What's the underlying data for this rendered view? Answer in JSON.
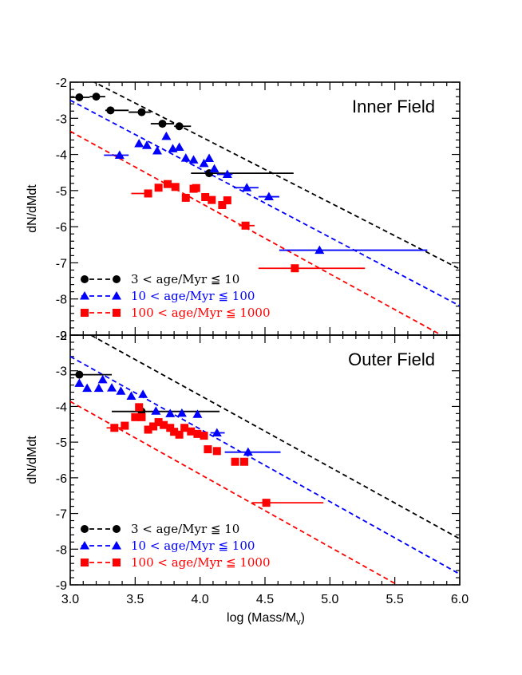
{
  "chart_data": [
    {
      "type": "scatter",
      "title": "Inner Field",
      "xlabel": "log (Mass/M",
      "ylabel": "dN/dMdt",
      "xlim": [
        3.0,
        6.0
      ],
      "ylim": [
        -9,
        -2
      ],
      "xticks": [
        "3.0",
        "3.5",
        "4.0",
        "4.5",
        "5.0",
        "5.5",
        "6.0"
      ],
      "yticks": [
        "-2",
        "-3",
        "-4",
        "-5",
        "-6",
        "-7",
        "-8",
        "-9"
      ],
      "legend_position": "bottom-left",
      "series": [
        {
          "name": "3 < age/Myr ≦ 10",
          "color": "#000000",
          "marker": "circle",
          "points": [
            {
              "x": 3.07,
              "y": -2.42,
              "xerr": [
                3.0,
                3.15
              ]
            },
            {
              "x": 3.2,
              "y": -2.4,
              "xerr": [
                3.15,
                3.27
              ]
            },
            {
              "x": 3.31,
              "y": -2.78,
              "xerr": [
                3.27,
                3.45
              ]
            },
            {
              "x": 3.55,
              "y": -2.83,
              "xerr": [
                3.45,
                3.62
              ]
            },
            {
              "x": 3.71,
              "y": -3.15,
              "xerr": [
                3.62,
                3.8
              ]
            },
            {
              "x": 3.84,
              "y": -3.22,
              "xerr": [
                3.8,
                3.93
              ]
            },
            {
              "x": 4.07,
              "y": -4.52,
              "xerr": [
                3.93,
                4.72
              ]
            }
          ],
          "fit_line": {
            "x": [
              3.0,
              6.0
            ],
            "y": [
              -1.66,
              -7.17
            ]
          }
        },
        {
          "name": "10 < age/Myr ≦ 100",
          "color": "#0000ff",
          "marker": "triangle",
          "points": [
            {
              "x": 3.38,
              "y": -4.02,
              "xerr": [
                3.26,
                3.45
              ]
            },
            {
              "x": 3.53,
              "y": -3.7
            },
            {
              "x": 3.59,
              "y": -3.75
            },
            {
              "x": 3.67,
              "y": -3.9
            },
            {
              "x": 3.74,
              "y": -3.5
            },
            {
              "x": 3.79,
              "y": -3.84
            },
            {
              "x": 3.84,
              "y": -3.8
            },
            {
              "x": 3.89,
              "y": -4.1
            },
            {
              "x": 3.95,
              "y": -4.15
            },
            {
              "x": 4.03,
              "y": -4.25
            },
            {
              "x": 4.07,
              "y": -4.11
            },
            {
              "x": 4.11,
              "y": -4.4
            },
            {
              "x": 4.21,
              "y": -4.55,
              "xerr": [
                4.13,
                4.25
              ]
            },
            {
              "x": 4.36,
              "y": -4.92,
              "xerr": [
                4.26,
                4.45
              ]
            },
            {
              "x": 4.53,
              "y": -5.17,
              "xerr": [
                4.45,
                4.61
              ]
            },
            {
              "x": 4.92,
              "y": -6.65,
              "xerr": [
                4.61,
                5.75
              ]
            }
          ],
          "fit_line": {
            "x": [
              3.0,
              6.0
            ],
            "y": [
              -2.5,
              -8.19
            ]
          }
        },
        {
          "name": "100 < age/Myr ≦ 1000",
          "color": "#ff0000",
          "marker": "square",
          "points": [
            {
              "x": 3.6,
              "y": -5.08,
              "xerr": [
                3.47,
                3.62
              ]
            },
            {
              "x": 3.68,
              "y": -4.92
            },
            {
              "x": 3.75,
              "y": -4.82
            },
            {
              "x": 3.81,
              "y": -4.9
            },
            {
              "x": 3.89,
              "y": -5.2
            },
            {
              "x": 3.95,
              "y": -4.95
            },
            {
              "x": 3.97,
              "y": -4.93
            },
            {
              "x": 4.04,
              "y": -5.18
            },
            {
              "x": 4.09,
              "y": -5.26
            },
            {
              "x": 4.17,
              "y": -5.4
            },
            {
              "x": 4.21,
              "y": -5.27
            },
            {
              "x": 4.35,
              "y": -5.97,
              "xerr": [
                4.3,
                4.42
              ]
            },
            {
              "x": 4.73,
              "y": -7.15,
              "xerr": [
                4.45,
                5.27
              ]
            }
          ],
          "fit_line": {
            "x": [
              3.0,
              6.0
            ],
            "y": [
              -3.36,
              -9.28
            ]
          }
        }
      ]
    },
    {
      "type": "scatter",
      "title": "Outer Field",
      "xlabel": "log (Mass/M",
      "ylabel": "dN/dMdt",
      "xlim": [
        3.0,
        6.0
      ],
      "ylim": [
        -9,
        -2
      ],
      "xticks": [
        "3.0",
        "3.5",
        "4.0",
        "4.5",
        "5.0",
        "5.5",
        "6.0"
      ],
      "yticks": [
        "-2",
        "-3",
        "-4",
        "-5",
        "-6",
        "-7",
        "-8",
        "-9"
      ],
      "legend_position": "bottom-left",
      "series": [
        {
          "name": "3 < age/Myr ≦ 10",
          "color": "#000000",
          "marker": "circle",
          "points": [
            {
              "x": 3.07,
              "y": -3.11,
              "xerr": [
                3.0,
                3.32
              ]
            },
            {
              "x": 3.55,
              "y": -4.14,
              "xerr": [
                3.32,
                4.15
              ]
            }
          ],
          "fit_line": {
            "x": [
              3.0,
              6.0
            ],
            "y": [
              -1.68,
              -7.71
            ]
          }
        },
        {
          "name": "10 < age/Myr ≦ 100",
          "color": "#0000ff",
          "marker": "triangle",
          "points": [
            {
              "x": 3.07,
              "y": -3.35
            },
            {
              "x": 3.13,
              "y": -3.49
            },
            {
              "x": 3.22,
              "y": -3.49
            },
            {
              "x": 3.25,
              "y": -3.25
            },
            {
              "x": 3.32,
              "y": -3.48
            },
            {
              "x": 3.39,
              "y": -3.57
            },
            {
              "x": 3.47,
              "y": -3.71
            },
            {
              "x": 3.56,
              "y": -3.66
            },
            {
              "x": 3.66,
              "y": -4.13
            },
            {
              "x": 3.77,
              "y": -4.2
            },
            {
              "x": 3.86,
              "y": -4.19
            },
            {
              "x": 3.98,
              "y": -4.22
            },
            {
              "x": 4.13,
              "y": -4.74,
              "xerr": [
                4.08,
                4.19
              ]
            },
            {
              "x": 4.37,
              "y": -5.28,
              "xerr": [
                4.19,
                4.62
              ]
            }
          ],
          "fit_line": {
            "x": [
              3.0,
              6.0
            ],
            "y": [
              -2.6,
              -8.7
            ]
          }
        },
        {
          "name": "100 < age/Myr ≦ 1000",
          "color": "#ff0000",
          "marker": "square",
          "points": [
            {
              "x": 3.34,
              "y": -4.6,
              "xerr": [
                3.28,
                3.4
              ]
            },
            {
              "x": 3.42,
              "y": -4.54
            },
            {
              "x": 3.5,
              "y": -4.3
            },
            {
              "x": 3.53,
              "y": -4.02
            },
            {
              "x": 3.55,
              "y": -4.3
            },
            {
              "x": 3.6,
              "y": -4.65
            },
            {
              "x": 3.64,
              "y": -4.56
            },
            {
              "x": 3.68,
              "y": -4.44
            },
            {
              "x": 3.72,
              "y": -4.52
            },
            {
              "x": 3.77,
              "y": -4.6
            },
            {
              "x": 3.8,
              "y": -4.71
            },
            {
              "x": 3.84,
              "y": -4.79
            },
            {
              "x": 3.88,
              "y": -4.6
            },
            {
              "x": 3.93,
              "y": -4.7
            },
            {
              "x": 3.98,
              "y": -4.77
            },
            {
              "x": 4.03,
              "y": -4.82
            },
            {
              "x": 4.06,
              "y": -5.2
            },
            {
              "x": 4.13,
              "y": -5.25
            },
            {
              "x": 4.27,
              "y": -5.55
            },
            {
              "x": 4.34,
              "y": -5.55
            },
            {
              "x": 4.51,
              "y": -6.7,
              "xerr": [
                4.4,
                4.95
              ]
            }
          ],
          "fit_line": {
            "x": [
              3.0,
              6.0
            ],
            "y": [
              -3.86,
              -9.98
            ]
          }
        }
      ]
    }
  ],
  "axes": {
    "xlabel_main": "log (Mass/M",
    "xlabel_sub": "v",
    "xlabel_close": ")"
  }
}
